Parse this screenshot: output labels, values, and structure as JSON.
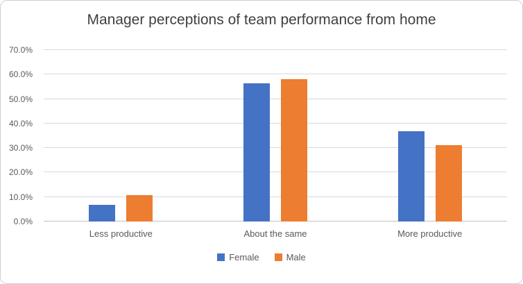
{
  "chart_data": {
    "type": "bar",
    "title": "Manager perceptions of team performance from home",
    "categories": [
      "Less productive",
      "About the same",
      "More productive"
    ],
    "series": [
      {
        "name": "Female",
        "color": "#4472C4",
        "values": [
          6.9,
          56.4,
          36.8
        ]
      },
      {
        "name": "Male",
        "color": "#ED7D31",
        "values": [
          10.8,
          58.2,
          31.3
        ]
      }
    ],
    "ylim": [
      0,
      70
    ],
    "ytick_step": 10,
    "yticks": [
      "0.0%",
      "10.0%",
      "20.0%",
      "30.0%",
      "40.0%",
      "50.0%",
      "60.0%",
      "70.0%"
    ],
    "grid": true,
    "legend_position": "bottom",
    "xlabel": "",
    "ylabel": ""
  },
  "colors": {
    "female_series": "#4472C4",
    "male_series": "#ED7D31",
    "gridline": "#d9d9d9",
    "axis_line": "#bfbfbf",
    "axis_text": "#595959",
    "title_text": "#3f3f3f"
  }
}
